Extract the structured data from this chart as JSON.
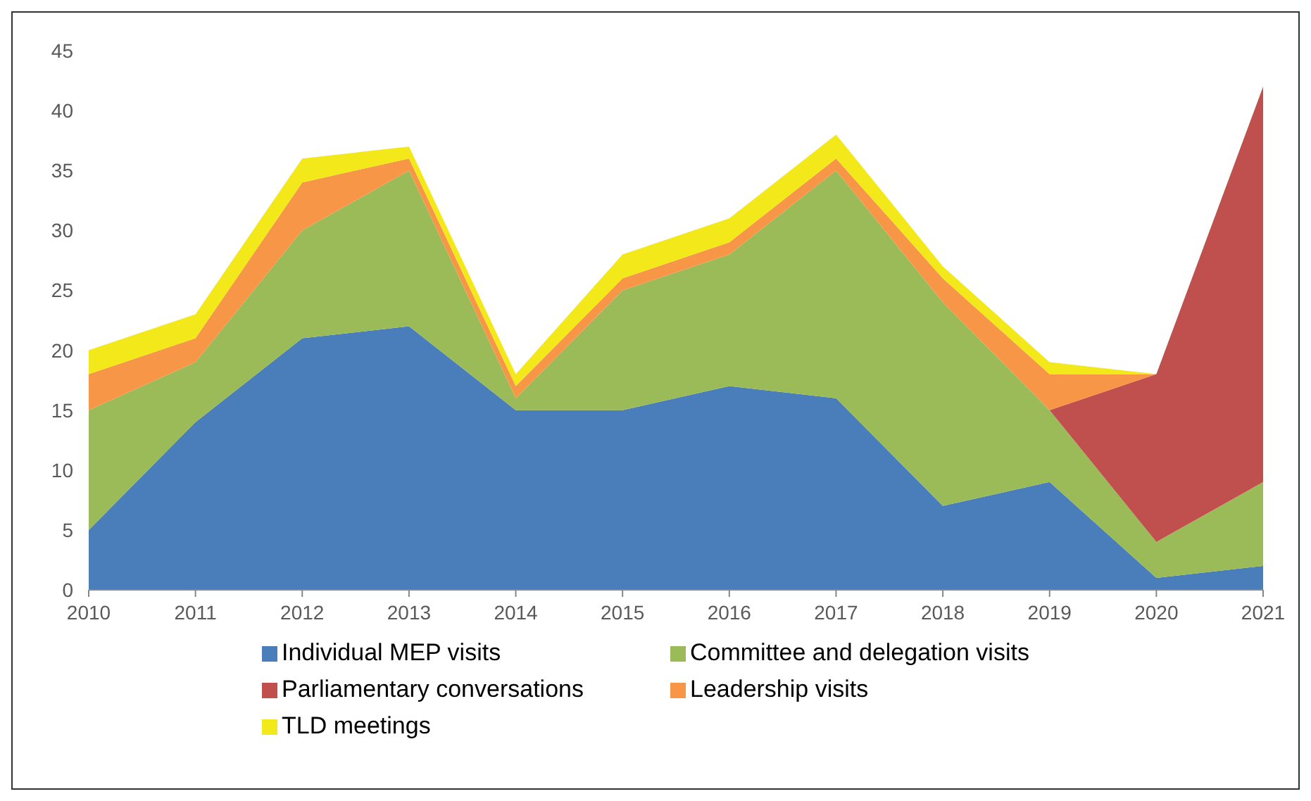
{
  "chart_data": {
    "type": "area",
    "stacked": true,
    "x": [
      2010,
      2011,
      2012,
      2013,
      2014,
      2015,
      2016,
      2017,
      2018,
      2019,
      2020,
      2021
    ],
    "xlim": [
      2010,
      2021
    ],
    "xticks": [
      2010,
      2011,
      2012,
      2013,
      2014,
      2015,
      2016,
      2017,
      2018,
      2019,
      2020,
      2021
    ],
    "ylim": [
      0,
      45
    ],
    "yticks": [
      0,
      5,
      10,
      15,
      20,
      25,
      30,
      35,
      40,
      45
    ],
    "grid": false,
    "legend": "bottom",
    "series": [
      {
        "name": "Individual MEP visits",
        "color": "#4a7ebb",
        "values": [
          5,
          14,
          21,
          22,
          15,
          15,
          17,
          16,
          7,
          9,
          1,
          2
        ]
      },
      {
        "name": "Committee and delegation visits",
        "color": "#9bbb59",
        "values": [
          10,
          5,
          9,
          13,
          1,
          10,
          11,
          19,
          17,
          6,
          3,
          7
        ]
      },
      {
        "name": "Parliamentary conversations",
        "color": "#c0504d",
        "values": [
          0,
          0,
          0,
          0,
          0,
          0,
          0,
          0,
          0,
          0,
          14,
          33
        ]
      },
      {
        "name": "Leadership visits",
        "color": "#f79646",
        "values": [
          3,
          2,
          4,
          1,
          1,
          1,
          1,
          1,
          2,
          3,
          0,
          0
        ]
      },
      {
        "name": "TLD meetings",
        "color": "#f2e81a",
        "values": [
          2,
          2,
          2,
          1,
          1,
          2,
          2,
          2,
          1,
          1,
          0,
          0
        ]
      }
    ]
  }
}
